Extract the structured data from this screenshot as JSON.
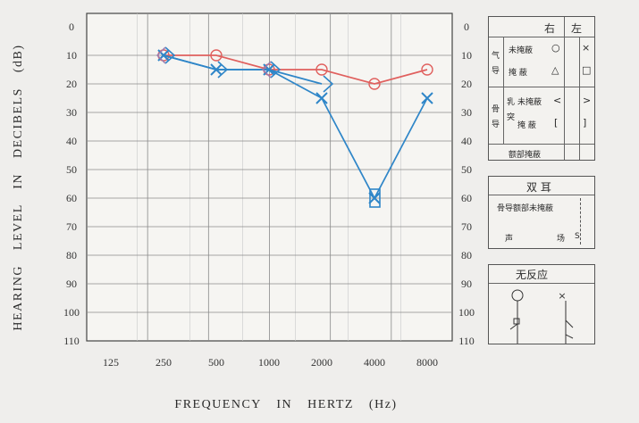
{
  "chart_data": {
    "type": "line",
    "title": "",
    "xlabel": "FREQUENCY IN HERTZ (Hz)",
    "ylabel": "HEARING LEVEL IN DECIBELS (dB)",
    "x_scale": "log2",
    "x_ticks": [
      "125",
      "250",
      "500",
      "1000",
      "2000",
      "4000",
      "8000"
    ],
    "x_values": [
      125,
      250,
      500,
      1000,
      2000,
      4000,
      8000
    ],
    "ylim": [
      0,
      110
    ],
    "y_inverted": true,
    "y_ticks": [
      "0",
      "10",
      "20",
      "30",
      "40",
      "50",
      "60",
      "70",
      "80",
      "90",
      "100",
      "110"
    ],
    "grid": true,
    "series": [
      {
        "color": "#e0605e",
        "marker": "circle",
        "points": [
          {
            "x": 250,
            "y": 10
          },
          {
            "x": 500,
            "y": 10
          },
          {
            "x": 1000,
            "y": 15
          },
          {
            "x": 2000,
            "y": 15
          },
          {
            "x": 4000,
            "y": 20
          },
          {
            "x": 8000,
            "y": 15
          }
        ]
      },
      {
        "color": "#2f86c8",
        "marker": "x",
        "points": [
          {
            "x": 250,
            "y": 10
          },
          {
            "x": 500,
            "y": 15
          },
          {
            "x": 1000,
            "y": 15
          },
          {
            "x": 2000,
            "y": 25
          },
          {
            "x": 4000,
            "y": 60
          },
          {
            "x": 8000,
            "y": 25
          }
        ]
      },
      {
        "color": "#2f86c8",
        "marker": "angle-right",
        "points": [
          {
            "x": 250,
            "y": 10
          },
          {
            "x": 500,
            "y": 15
          },
          {
            "x": 1000,
            "y": 15
          },
          {
            "x": 2000,
            "y": 20
          }
        ]
      },
      {
        "color": "#2f86c8",
        "marker": "bracket-square",
        "points": [
          {
            "x": 4000,
            "y": 60
          }
        ]
      },
      {
        "color": "#9a7cb0",
        "marker": "bracket-left",
        "points": [
          {
            "x": 250,
            "y": 10
          },
          {
            "x": 1000,
            "y": 15
          }
        ]
      }
    ]
  },
  "legend": {
    "ear_header": {
      "right": "右",
      "left": "左"
    },
    "air": {
      "category": "气导",
      "unmasked": "未掩蔽",
      "masked": "掩 蔽"
    },
    "bone": {
      "category": "骨导",
      "sub_mastoid": "乳突",
      "unmasked": "未掩蔽",
      "masked": "掩 蔽",
      "forehead_masked": "额部掩蔽"
    },
    "symbols": {
      "air_unmasked_right": "○",
      "air_unmasked_left": "×",
      "air_masked_right": "△",
      "air_masked_left": "□",
      "bone_unmasked_right": "<",
      "bone_unmasked_left": ">",
      "bone_masked_right": "[",
      "bone_masked_left": "]"
    }
  },
  "binaural": {
    "header": "双 耳",
    "bone_forehead": "骨导额部未掩蔽",
    "sound_field_left": "声",
    "sound_field_right": "场",
    "sound_field_symbol": "S"
  },
  "no_response": {
    "header": "无反应"
  }
}
